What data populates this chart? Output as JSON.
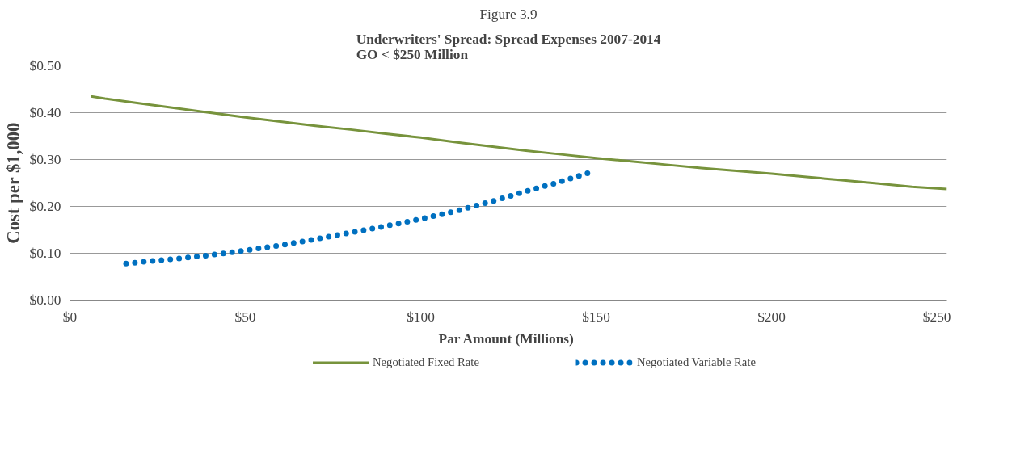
{
  "chart_data": {
    "type": "line",
    "title": "Figure 3.9",
    "subtitle": "Underwriters' Spread: Spread Expenses 2007-2014\nGO < $250 Million",
    "xlabel": "Par Amount  (Millions)",
    "ylabel": "Cost per $1,000",
    "xlim": [
      0,
      250
    ],
    "xticks": [
      {
        "value": 0,
        "label": "$0"
      },
      {
        "value": 50,
        "label": "$50"
      },
      {
        "value": 100,
        "label": "$100"
      },
      {
        "value": 150,
        "label": "$150"
      },
      {
        "value": 200,
        "label": "$200"
      },
      {
        "value": 250,
        "label": "$250"
      }
    ],
    "ylim": [
      0,
      0.5
    ],
    "yticks": [
      {
        "value": 0,
        "label": "$0.00"
      },
      {
        "value": 0.1,
        "label": "$0.10"
      },
      {
        "value": 0.2,
        "label": "$0.20"
      },
      {
        "value": 0.3,
        "label": "$0.30"
      },
      {
        "value": 0.4,
        "label": "$0.40"
      },
      {
        "value": 0.5,
        "label": "$0.50"
      }
    ],
    "grid": "y",
    "legend": "bottom",
    "series": [
      {
        "name": "Negotiated Fixed Rate",
        "color": "#77933c",
        "line_style": "solid",
        "x": [
          6,
          10,
          20,
          30,
          40,
          50,
          60,
          70,
          80,
          90,
          100,
          110,
          120,
          130,
          140,
          150,
          160,
          170,
          180,
          190,
          200,
          210,
          220,
          230,
          240,
          250
        ],
        "values": [
          0.435,
          0.43,
          0.42,
          0.41,
          0.4,
          0.39,
          0.381,
          0.372,
          0.364,
          0.355,
          0.347,
          0.337,
          0.328,
          0.319,
          0.311,
          0.303,
          0.296,
          0.289,
          0.282,
          0.276,
          0.27,
          0.263,
          0.256,
          0.249,
          0.242,
          0.237
        ]
      },
      {
        "name": "Negotiated Variable Rate",
        "color": "#0070c0",
        "line_style": "dotted",
        "x": [
          16,
          20,
          30,
          40,
          50,
          60,
          70,
          80,
          90,
          100,
          110,
          120,
          130,
          140,
          148
        ],
        "values": [
          0.078,
          0.081,
          0.088,
          0.096,
          0.106,
          0.117,
          0.13,
          0.144,
          0.158,
          0.173,
          0.19,
          0.21,
          0.232,
          0.253,
          0.272
        ]
      }
    ]
  }
}
